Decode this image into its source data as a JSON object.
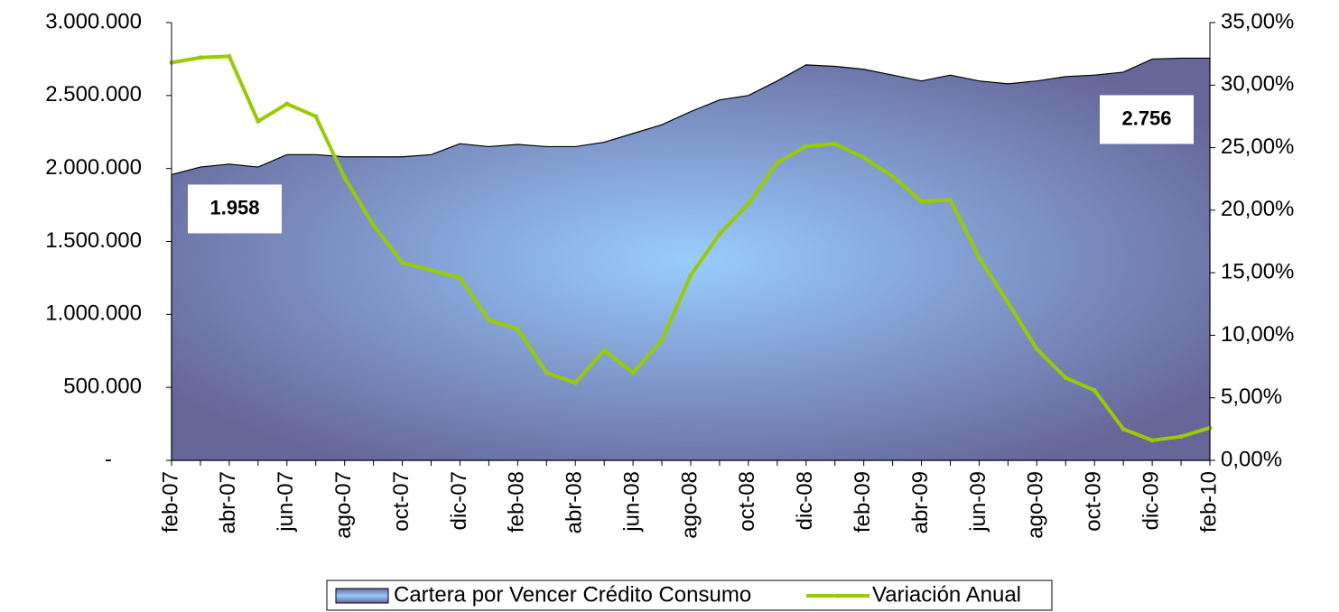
{
  "chart_data": {
    "type": "area-line",
    "categories": [
      "feb-07",
      null,
      "abr-07",
      null,
      "jun-07",
      null,
      "ago-07",
      null,
      "oct-07",
      null,
      "dic-07",
      null,
      "feb-08",
      null,
      "abr-08",
      null,
      "jun-08",
      null,
      "ago-08",
      null,
      "oct-08",
      null,
      "dic-08",
      null,
      "feb-09",
      null,
      "abr-09",
      null,
      "jun-09",
      null,
      "ago-09",
      null,
      "oct-09",
      null,
      "dic-09",
      null,
      "feb-10"
    ],
    "series": [
      {
        "name": "Cartera por Vencer Crédito Consumo",
        "type": "area",
        "color": "#666699",
        "values": [
          1958000,
          2010000,
          2030000,
          2010000,
          2095000,
          2095000,
          2080000,
          2080000,
          2080000,
          2095000,
          2170000,
          2150000,
          2165000,
          2150000,
          2150000,
          2180000,
          2240000,
          2300000,
          2390000,
          2470000,
          2500000,
          2600000,
          2710000,
          2700000,
          2680000,
          2640000,
          2600000,
          2640000,
          2600000,
          2580000,
          2600000,
          2630000,
          2640000,
          2660000,
          2750000,
          2756000,
          2756000
        ],
        "value_labels": [
          "1.958",
          null,
          null,
          null,
          null,
          null,
          null,
          null,
          null,
          null,
          null,
          null,
          null,
          null,
          null,
          null,
          null,
          null,
          null,
          null,
          null,
          null,
          null,
          null,
          null,
          null,
          null,
          null,
          null,
          null,
          null,
          null,
          null,
          null,
          null,
          null,
          "2.756"
        ]
      },
      {
        "name": "Variación Anual",
        "type": "line",
        "color": "#99cc00",
        "axis": "y2",
        "values": [
          31.8,
          32.2,
          32.3,
          27.1,
          28.5,
          27.5,
          22.6,
          18.8,
          15.8,
          15.2,
          14.6,
          11.2,
          10.5,
          7.0,
          6.2,
          8.8,
          7.0,
          9.6,
          14.8,
          18.1,
          20.5,
          23.8,
          25.1,
          25.3,
          24.2,
          22.7,
          20.7,
          20.8,
          16.2,
          12.6,
          8.9,
          6.6,
          5.6,
          2.5,
          1.6,
          1.9,
          2.6
        ]
      }
    ],
    "ylim": [
      0,
      3000000
    ],
    "yticks": [
      {
        "value": 0,
        "label": "-"
      },
      {
        "value": 500000,
        "label": "500.000"
      },
      {
        "value": 1000000,
        "label": "1.000.000"
      },
      {
        "value": 1500000,
        "label": "1.500.000"
      },
      {
        "value": 2000000,
        "label": "2.000.000"
      },
      {
        "value": 2500000,
        "label": "2.500.000"
      },
      {
        "value": 3000000,
        "label": "3.000.000"
      }
    ],
    "y2lim": [
      0,
      35
    ],
    "y2ticks": [
      {
        "value": 0,
        "label": "0,00%"
      },
      {
        "value": 5,
        "label": "5,00%"
      },
      {
        "value": 10,
        "label": "10,00%"
      },
      {
        "value": 15,
        "label": "15,00%"
      },
      {
        "value": 20,
        "label": "20,00%"
      },
      {
        "value": 25,
        "label": "25,00%"
      },
      {
        "value": 30,
        "label": "30,00%"
      },
      {
        "value": 35,
        "label": "35,00%"
      }
    ],
    "legend": "bottom"
  }
}
